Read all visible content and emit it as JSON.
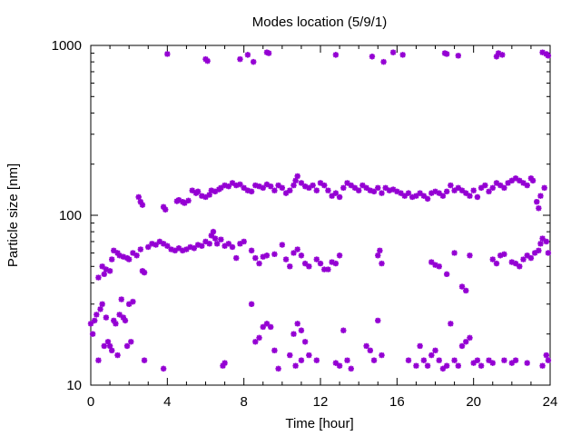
{
  "chart_data": {
    "type": "scatter",
    "title": "Modes location (5/9/1)",
    "xlabel": "Time [hour]",
    "ylabel": "Particle size [nm]",
    "xlim": [
      0,
      24
    ],
    "ylim": [
      10,
      1000
    ],
    "yscale": "log",
    "grid": false,
    "legend": "none",
    "marker_color": "#9400D3",
    "xticks": [
      0,
      4,
      8,
      12,
      16,
      20,
      24
    ],
    "yticks": [
      10,
      100,
      1000
    ],
    "series": [
      {
        "points": [
          [
            4.0,
            890
          ],
          [
            6.0,
            830
          ],
          [
            6.1,
            810
          ],
          [
            7.8,
            830
          ],
          [
            8.2,
            880
          ],
          [
            8.5,
            800
          ],
          [
            9.2,
            910
          ],
          [
            9.3,
            900
          ],
          [
            12.8,
            880
          ],
          [
            14.7,
            860
          ],
          [
            15.3,
            800
          ],
          [
            15.8,
            910
          ],
          [
            16.3,
            880
          ],
          [
            18.5,
            900
          ],
          [
            18.6,
            890
          ],
          [
            19.2,
            870
          ],
          [
            21.2,
            860
          ],
          [
            21.3,
            900
          ],
          [
            21.5,
            880
          ],
          [
            23.6,
            910
          ],
          [
            23.8,
            890
          ],
          [
            23.9,
            870
          ],
          [
            2.5,
            128
          ],
          [
            2.6,
            120
          ],
          [
            2.7,
            115
          ],
          [
            3.8,
            112
          ],
          [
            3.9,
            108
          ],
          [
            4.5,
            121
          ],
          [
            4.6,
            123
          ],
          [
            4.8,
            120
          ],
          [
            4.9,
            118
          ],
          [
            5.1,
            122
          ],
          [
            5.3,
            140
          ],
          [
            5.5,
            135
          ],
          [
            5.6,
            138
          ],
          [
            5.8,
            130
          ],
          [
            6.0,
            128
          ],
          [
            6.2,
            132
          ],
          [
            6.3,
            140
          ],
          [
            6.5,
            138
          ],
          [
            6.7,
            142
          ],
          [
            6.8,
            145
          ],
          [
            7.0,
            150
          ],
          [
            7.2,
            148
          ],
          [
            7.4,
            155
          ],
          [
            7.6,
            150
          ],
          [
            7.8,
            152
          ],
          [
            8.0,
            145
          ],
          [
            8.2,
            140
          ],
          [
            8.4,
            138
          ],
          [
            8.6,
            150
          ],
          [
            8.8,
            148
          ],
          [
            9.0,
            145
          ],
          [
            9.2,
            152
          ],
          [
            9.4,
            148
          ],
          [
            9.6,
            140
          ],
          [
            9.8,
            150
          ],
          [
            10.0,
            145
          ],
          [
            10.2,
            135
          ],
          [
            10.4,
            140
          ],
          [
            10.6,
            150
          ],
          [
            10.7,
            160
          ],
          [
            10.8,
            170
          ],
          [
            11.0,
            155
          ],
          [
            11.2,
            148
          ],
          [
            11.4,
            145
          ],
          [
            11.6,
            150
          ],
          [
            11.8,
            140
          ],
          [
            12.0,
            155
          ],
          [
            12.2,
            150
          ],
          [
            12.4,
            140
          ],
          [
            12.6,
            130
          ],
          [
            12.8,
            135
          ],
          [
            13.0,
            128
          ],
          [
            13.2,
            145
          ],
          [
            13.4,
            155
          ],
          [
            13.6,
            150
          ],
          [
            13.8,
            145
          ],
          [
            14.0,
            140
          ],
          [
            14.2,
            150
          ],
          [
            14.4,
            145
          ],
          [
            14.6,
            140
          ],
          [
            14.8,
            138
          ],
          [
            15.0,
            145
          ],
          [
            15.2,
            135
          ],
          [
            15.4,
            145
          ],
          [
            15.6,
            140
          ],
          [
            15.8,
            142
          ],
          [
            16.0,
            138
          ],
          [
            16.2,
            135
          ],
          [
            16.4,
            130
          ],
          [
            16.6,
            135
          ],
          [
            16.8,
            128
          ],
          [
            17.0,
            130
          ],
          [
            17.2,
            135
          ],
          [
            17.4,
            130
          ],
          [
            17.6,
            125
          ],
          [
            17.8,
            135
          ],
          [
            18.0,
            138
          ],
          [
            18.2,
            135
          ],
          [
            18.4,
            130
          ],
          [
            18.6,
            138
          ],
          [
            18.8,
            150
          ],
          [
            19.0,
            140
          ],
          [
            19.2,
            145
          ],
          [
            19.4,
            140
          ],
          [
            19.6,
            135
          ],
          [
            19.8,
            130
          ],
          [
            20.0,
            140
          ],
          [
            20.2,
            128
          ],
          [
            20.4,
            145
          ],
          [
            20.6,
            150
          ],
          [
            20.8,
            138
          ],
          [
            21.0,
            145
          ],
          [
            21.2,
            155
          ],
          [
            21.4,
            150
          ],
          [
            21.6,
            145
          ],
          [
            21.8,
            155
          ],
          [
            22.0,
            160
          ],
          [
            22.2,
            165
          ],
          [
            22.4,
            160
          ],
          [
            22.6,
            155
          ],
          [
            22.8,
            150
          ],
          [
            23.0,
            165
          ],
          [
            23.1,
            160
          ],
          [
            23.3,
            120
          ],
          [
            23.4,
            110
          ],
          [
            23.5,
            130
          ],
          [
            23.7,
            145
          ],
          [
            0.4,
            43
          ],
          [
            0.6,
            50
          ],
          [
            0.7,
            45
          ],
          [
            0.8,
            48
          ],
          [
            1.0,
            47
          ],
          [
            1.1,
            55
          ],
          [
            1.2,
            62
          ],
          [
            1.4,
            60
          ],
          [
            1.5,
            58
          ],
          [
            1.7,
            57
          ],
          [
            1.9,
            56
          ],
          [
            2.0,
            55
          ],
          [
            2.2,
            60
          ],
          [
            2.4,
            58
          ],
          [
            2.6,
            63
          ],
          [
            2.7,
            47
          ],
          [
            2.8,
            46
          ],
          [
            3.0,
            65
          ],
          [
            3.2,
            68
          ],
          [
            3.4,
            67
          ],
          [
            3.6,
            70
          ],
          [
            3.8,
            68
          ],
          [
            4.0,
            66
          ],
          [
            4.2,
            63
          ],
          [
            4.4,
            62
          ],
          [
            4.6,
            64
          ],
          [
            4.8,
            62
          ],
          [
            5.0,
            63
          ],
          [
            5.2,
            65
          ],
          [
            5.4,
            64
          ],
          [
            5.6,
            67
          ],
          [
            5.8,
            66
          ],
          [
            6.0,
            70
          ],
          [
            6.2,
            68
          ],
          [
            6.3,
            76
          ],
          [
            6.4,
            80
          ],
          [
            6.5,
            73
          ],
          [
            6.6,
            68
          ],
          [
            6.8,
            72
          ],
          [
            7.0,
            66
          ],
          [
            7.2,
            68
          ],
          [
            7.4,
            65
          ],
          [
            7.6,
            56
          ],
          [
            7.8,
            68
          ],
          [
            8.0,
            70
          ],
          [
            8.4,
            62
          ],
          [
            8.6,
            56
          ],
          [
            8.8,
            52
          ],
          [
            9.0,
            57
          ],
          [
            9.2,
            58
          ],
          [
            9.6,
            59
          ],
          [
            10.0,
            67
          ],
          [
            10.2,
            55
          ],
          [
            10.4,
            50
          ],
          [
            10.6,
            60
          ],
          [
            10.8,
            63
          ],
          [
            11.0,
            58
          ],
          [
            11.2,
            52
          ],
          [
            11.4,
            50
          ],
          [
            11.8,
            55
          ],
          [
            12.0,
            52
          ],
          [
            12.2,
            48
          ],
          [
            12.4,
            48
          ],
          [
            12.6,
            53
          ],
          [
            12.8,
            52
          ],
          [
            13.0,
            58
          ],
          [
            15.0,
            58
          ],
          [
            15.1,
            62
          ],
          [
            15.2,
            52
          ],
          [
            17.8,
            53
          ],
          [
            18.0,
            51
          ],
          [
            18.2,
            50
          ],
          [
            18.6,
            45
          ],
          [
            19.0,
            60
          ],
          [
            19.4,
            38
          ],
          [
            19.6,
            36
          ],
          [
            19.8,
            58
          ],
          [
            21.0,
            55
          ],
          [
            21.2,
            52
          ],
          [
            21.4,
            58
          ],
          [
            21.6,
            59
          ],
          [
            22.0,
            53
          ],
          [
            22.2,
            52
          ],
          [
            22.4,
            50
          ],
          [
            22.6,
            55
          ],
          [
            22.8,
            58
          ],
          [
            23.0,
            56
          ],
          [
            23.2,
            60
          ],
          [
            23.4,
            62
          ],
          [
            23.5,
            68
          ],
          [
            23.6,
            73
          ],
          [
            23.8,
            70
          ],
          [
            23.9,
            60
          ],
          [
            0.0,
            23
          ],
          [
            0.1,
            20
          ],
          [
            0.2,
            24
          ],
          [
            0.3,
            26
          ],
          [
            0.4,
            14
          ],
          [
            0.5,
            28
          ],
          [
            0.6,
            30
          ],
          [
            0.7,
            17
          ],
          [
            0.8,
            25
          ],
          [
            0.9,
            18
          ],
          [
            1.0,
            17
          ],
          [
            1.1,
            16
          ],
          [
            1.2,
            24
          ],
          [
            1.3,
            23
          ],
          [
            1.4,
            15
          ],
          [
            1.5,
            26
          ],
          [
            1.6,
            32
          ],
          [
            1.7,
            25
          ],
          [
            1.8,
            24
          ],
          [
            1.9,
            17
          ],
          [
            2.0,
            30
          ],
          [
            2.1,
            18
          ],
          [
            2.2,
            31
          ],
          [
            2.8,
            14
          ],
          [
            3.8,
            12.5
          ],
          [
            6.9,
            13
          ],
          [
            7.0,
            13.5
          ],
          [
            8.4,
            30
          ],
          [
            8.6,
            18
          ],
          [
            8.8,
            19
          ],
          [
            9.0,
            22
          ],
          [
            9.2,
            23
          ],
          [
            9.4,
            22
          ],
          [
            9.6,
            16
          ],
          [
            9.8,
            12.5
          ],
          [
            10.4,
            15
          ],
          [
            10.6,
            20
          ],
          [
            10.8,
            23
          ],
          [
            11.0,
            21
          ],
          [
            11.2,
            18
          ],
          [
            10.7,
            13
          ],
          [
            11.0,
            14
          ],
          [
            11.4,
            15
          ],
          [
            11.8,
            14
          ],
          [
            12.8,
            13.5
          ],
          [
            13.0,
            13
          ],
          [
            13.2,
            21
          ],
          [
            13.4,
            14
          ],
          [
            13.6,
            12.5
          ],
          [
            14.4,
            17
          ],
          [
            14.6,
            16
          ],
          [
            14.8,
            14
          ],
          [
            15.0,
            24
          ],
          [
            15.2,
            15
          ],
          [
            16.6,
            14
          ],
          [
            17.0,
            13
          ],
          [
            17.2,
            17
          ],
          [
            17.4,
            14
          ],
          [
            17.6,
            13
          ],
          [
            17.8,
            15
          ],
          [
            18.0,
            16
          ],
          [
            18.2,
            14
          ],
          [
            18.4,
            12.5
          ],
          [
            18.6,
            13
          ],
          [
            18.8,
            23
          ],
          [
            19.0,
            14
          ],
          [
            19.2,
            13
          ],
          [
            19.4,
            17
          ],
          [
            19.6,
            18
          ],
          [
            19.8,
            19
          ],
          [
            20.0,
            13.5
          ],
          [
            20.2,
            14
          ],
          [
            20.4,
            13
          ],
          [
            20.8,
            14
          ],
          [
            21.0,
            13.5
          ],
          [
            21.6,
            14
          ],
          [
            22.0,
            13.5
          ],
          [
            22.2,
            14
          ],
          [
            22.8,
            13.5
          ],
          [
            23.6,
            13
          ],
          [
            23.8,
            15
          ],
          [
            23.9,
            14
          ]
        ]
      }
    ]
  }
}
